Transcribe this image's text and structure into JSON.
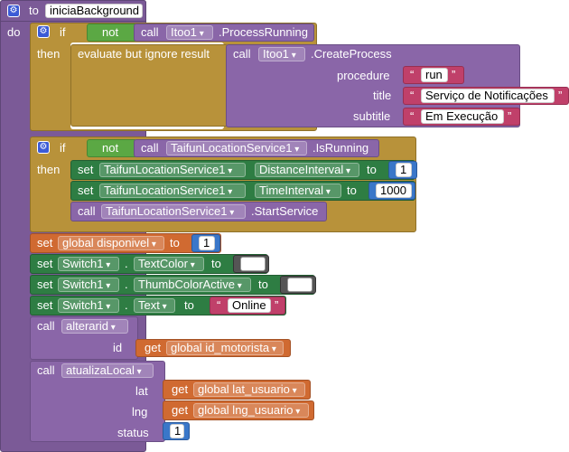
{
  "procedure": {
    "keyword_to": "to",
    "name": "iniciaBackground",
    "keyword_do": "do"
  },
  "if1": {
    "keyword_if": "if",
    "keyword_not": "not",
    "keyword_call": "call",
    "component": "Itoo1",
    "method": ".ProcessRunning",
    "keyword_then": "then",
    "evaluate": "evaluate but ignore result",
    "call2": "call",
    "component2": "Itoo1",
    "method2": ".CreateProcess",
    "arg_procedure": "procedure",
    "arg_title": "title",
    "arg_subtitle": "subtitle",
    "val_procedure": "run",
    "val_title": "Serviço de Notificações",
    "val_subtitle": "Em Execução"
  },
  "if2": {
    "keyword_if": "if",
    "keyword_not": "not",
    "keyword_call": "call",
    "component": "TaifunLocationService1",
    "method": ".IsRunning",
    "keyword_then": "then",
    "set1": {
      "kw_set": "set",
      "component": "TaifunLocationService1",
      "prop": "DistanceInterval",
      "kw_to": "to",
      "value": "1"
    },
    "set2": {
      "kw_set": "set",
      "component": "TaifunLocationService1",
      "prop": "TimeInterval",
      "kw_to": "to",
      "value": "1000"
    },
    "call3": {
      "kw_call": "call",
      "component": "TaifunLocationService1",
      "method": ".StartService"
    }
  },
  "set_global": {
    "kw_set": "set",
    "var": "global disponivel",
    "kw_to": "to",
    "value": "1"
  },
  "set_sw1": {
    "kw_set": "set",
    "component": "Switch1",
    "dot": ".",
    "prop": "TextColor",
    "kw_to": "to"
  },
  "set_sw2": {
    "kw_set": "set",
    "component": "Switch1",
    "dot": ".",
    "prop": "ThumbColorActive",
    "kw_to": "to"
  },
  "set_sw3": {
    "kw_set": "set",
    "component": "Switch1",
    "dot": ".",
    "prop": "Text",
    "kw_to": "to",
    "value": "Online"
  },
  "call_alterarid": {
    "kw_call": "call",
    "name": "alterarid",
    "arg": "id",
    "kw_get": "get",
    "var": "global id_motorista"
  },
  "call_atualiza": {
    "kw_call": "call",
    "name": "atualizaLocal",
    "arg_lat": "lat",
    "arg_lng": "lng",
    "arg_status": "status",
    "kw_get": "get",
    "var_lat": "global lat_usuario",
    "var_lng": "global lng_usuario",
    "status_value": "1"
  },
  "quote_open": "“",
  "quote_close": "”",
  "icons": {
    "gear": "gear-icon",
    "dropdown": "chevron-down-icon"
  }
}
